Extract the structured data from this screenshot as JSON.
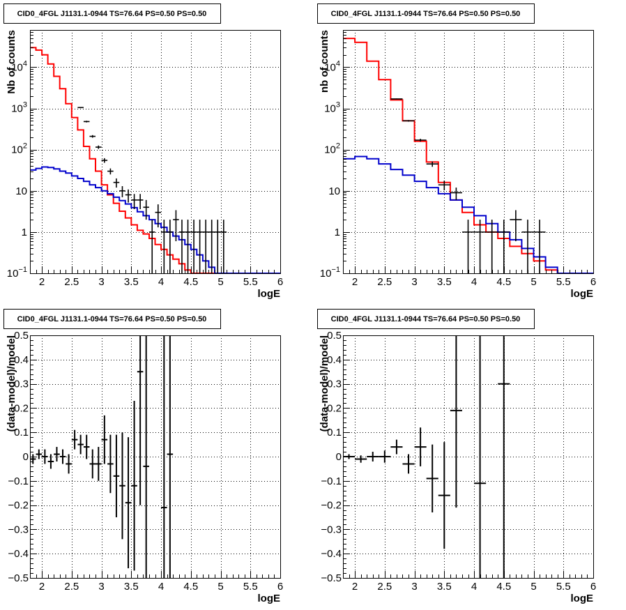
{
  "chart_data": [
    {
      "type": "line",
      "title": "CID0_4FGL J1131.1-0944 TS=76.64 PS=0.50 PS=0.50",
      "xlabel": "logE",
      "ylabel": "Nb of counts",
      "yscale": "log",
      "xlim": [
        1.8,
        6
      ],
      "ylim": [
        0.1,
        80000
      ],
      "grid": true,
      "xticks": [
        "2",
        "2.5",
        "3",
        "3.5",
        "4",
        "4.5",
        "5",
        "5.5",
        "6"
      ],
      "yticks": [
        {
          "base": "10",
          "exp": "−1",
          "value": 0.1
        },
        {
          "base": "1",
          "exp": "",
          "value": 1
        },
        {
          "base": "10",
          "exp": "",
          "value": 10
        },
        {
          "base": "10",
          "exp": "2",
          "value": 100
        },
        {
          "base": "10",
          "exp": "3",
          "value": 1000
        },
        {
          "base": "10",
          "exp": "4",
          "value": 10000
        }
      ],
      "bin_width": 0.1,
      "series": [
        {
          "color": "#ff0000",
          "style": "step",
          "x": [
            1.8,
            1.9,
            2.0,
            2.1,
            2.2,
            2.3,
            2.4,
            2.5,
            2.6,
            2.7,
            2.8,
            2.9,
            3.0,
            3.1,
            3.2,
            3.3,
            3.4,
            3.5,
            3.6,
            3.7,
            3.8,
            3.9,
            4.0,
            4.1,
            4.2,
            4.3,
            4.4,
            4.5,
            4.6,
            4.7,
            4.8,
            4.9,
            5.0,
            5.1,
            5.2,
            5.3,
            5.4,
            5.5,
            5.6,
            5.7,
            5.8,
            5.9
          ],
          "y": [
            30000,
            26000,
            20000,
            12000,
            6000,
            3000,
            1300,
            600,
            300,
            120,
            60,
            30,
            14,
            8,
            5,
            3.2,
            2.2,
            1.5,
            1.1,
            0.9,
            0.7,
            0.5,
            0.38,
            0.28,
            0.22,
            0.17,
            0.12,
            0.1,
            0.1,
            0.1,
            0.1,
            0.1,
            0.1,
            0.1,
            0.1,
            0.1,
            0.1,
            0.1,
            0.1,
            0.1,
            0.1,
            0.1
          ]
        },
        {
          "color": "#0000cc",
          "style": "step",
          "x": [
            1.8,
            1.9,
            2.0,
            2.1,
            2.2,
            2.3,
            2.4,
            2.5,
            2.6,
            2.7,
            2.8,
            2.9,
            3.0,
            3.1,
            3.2,
            3.3,
            3.4,
            3.5,
            3.6,
            3.7,
            3.8,
            3.9,
            4.0,
            4.1,
            4.2,
            4.3,
            4.4,
            4.5,
            4.6,
            4.7,
            4.8,
            4.9,
            5.0,
            5.1,
            5.2,
            5.3,
            5.4,
            5.5,
            5.6,
            5.7,
            5.8,
            5.9
          ],
          "y": [
            32,
            35,
            38,
            37,
            34,
            30,
            27,
            23,
            20,
            17,
            14,
            12,
            10,
            8.5,
            7,
            5.8,
            4.8,
            3.9,
            3.1,
            2.5,
            2.0,
            1.6,
            1.3,
            1.0,
            0.8,
            0.65,
            0.5,
            0.38,
            0.28,
            0.2,
            0.14,
            0.1,
            0.1,
            0.1,
            0.1,
            0.1,
            0.1,
            0.1,
            0.1,
            0.1,
            0.1,
            0.1
          ]
        },
        {
          "color": "#000000",
          "style": "points",
          "x": [
            2.65,
            2.75,
            2.85,
            2.95,
            3.05,
            3.15,
            3.25,
            3.35,
            3.45,
            3.55,
            3.65,
            3.75,
            3.85,
            3.95,
            4.05,
            4.15,
            4.25,
            4.35,
            4.45,
            4.55,
            4.65,
            4.75,
            4.85,
            4.95,
            5.05
          ],
          "y": [
            1050,
            480,
            210,
            115,
            55,
            30,
            16,
            10,
            8,
            6,
            6,
            4,
            1,
            3,
            1,
            1,
            2,
            1,
            1,
            1,
            1,
            1,
            1,
            1,
            1
          ],
          "yerr_lo": [
            32,
            22,
            15,
            11,
            7,
            5,
            4,
            3,
            2.8,
            2.4,
            2.4,
            2,
            0.9,
            1.7,
            0.9,
            0.9,
            1.4,
            0.9,
            0.9,
            0.9,
            0.9,
            0.9,
            0.9,
            0.9,
            0.9
          ],
          "yerr_hi": [
            32,
            22,
            15,
            11,
            7,
            5,
            4,
            3,
            2.8,
            2.4,
            2.4,
            2,
            1,
            1.7,
            1,
            1,
            1.4,
            1,
            1,
            1,
            1,
            1,
            1,
            1,
            1
          ]
        }
      ]
    },
    {
      "type": "line",
      "title": "CID0_4FGL J1131.1-0944 TS=76.64 PS=0.50 PS=0.50",
      "xlabel": "logE",
      "ylabel": "nb of counts",
      "yscale": "log",
      "xlim": [
        1.8,
        6
      ],
      "ylim": [
        0.1,
        80000
      ],
      "grid": true,
      "xticks": [
        "2",
        "2.5",
        "3",
        "3.5",
        "4",
        "4.5",
        "5",
        "5.5",
        "6"
      ],
      "yticks": [
        {
          "base": "10",
          "exp": "−1",
          "value": 0.1
        },
        {
          "base": "1",
          "exp": "",
          "value": 1
        },
        {
          "base": "10",
          "exp": "",
          "value": 10
        },
        {
          "base": "10",
          "exp": "2",
          "value": 100
        },
        {
          "base": "10",
          "exp": "3",
          "value": 1000
        },
        {
          "base": "10",
          "exp": "4",
          "value": 10000
        }
      ],
      "bin_width": 0.2,
      "series": [
        {
          "color": "#ff0000",
          "style": "step",
          "x": [
            1.8,
            2.0,
            2.2,
            2.4,
            2.6,
            2.8,
            3.0,
            3.2,
            3.4,
            3.6,
            3.8,
            4.0,
            4.2,
            4.4,
            4.6,
            4.8,
            5.0,
            5.2,
            5.4,
            5.6,
            5.8
          ],
          "y": [
            50000,
            40000,
            14000,
            5000,
            1600,
            500,
            160,
            50,
            16,
            6,
            3,
            1.5,
            1.0,
            0.7,
            0.45,
            0.3,
            0.2,
            0.12,
            0.1,
            0.1,
            0.1
          ]
        },
        {
          "color": "#0000cc",
          "style": "step",
          "x": [
            1.8,
            2.0,
            2.2,
            2.4,
            2.6,
            2.8,
            3.0,
            3.2,
            3.4,
            3.6,
            3.8,
            4.0,
            4.2,
            4.4,
            4.6,
            4.8,
            5.0,
            5.2,
            5.4,
            5.6,
            5.8
          ],
          "y": [
            60,
            68,
            60,
            45,
            33,
            24,
            17,
            12,
            8.5,
            6,
            4,
            2.5,
            1.6,
            1.0,
            0.65,
            0.4,
            0.25,
            0.14,
            0.1,
            0.1,
            0.1
          ]
        },
        {
          "color": "#000000",
          "style": "points",
          "x": [
            2.7,
            2.9,
            3.1,
            3.3,
            3.5,
            3.7,
            3.9,
            4.1,
            4.3,
            4.5,
            4.7,
            4.9,
            5.1
          ],
          "y": [
            1700,
            500,
            170,
            45,
            14,
            9,
            1,
            1,
            1,
            1,
            2,
            1,
            1
          ],
          "yerr_lo": [
            41,
            22,
            13,
            6.7,
            3.7,
            3,
            0.9,
            0.9,
            0.9,
            0.9,
            1.4,
            0.9,
            0.9
          ],
          "yerr_hi": [
            41,
            22,
            13,
            6.7,
            3.7,
            3,
            1,
            1,
            1,
            1,
            1.4,
            1,
            1
          ]
        }
      ]
    },
    {
      "type": "scatter",
      "title": "CID0_4FGL J1131.1-0944 TS=76.64 PS=0.50 PS=0.50",
      "xlabel": "logE",
      "ylabel": "(data-model)/model",
      "xlim": [
        1.8,
        6
      ],
      "ylim": [
        -0.5,
        0.5
      ],
      "grid": true,
      "xticks": [
        "2",
        "2.5",
        "3",
        "3.5",
        "4",
        "4.5",
        "5",
        "5.5",
        "6"
      ],
      "yticks": [
        "−0.5",
        "−0.4",
        "−0.3",
        "−0.2",
        "−0.1",
        "0",
        "0.1",
        "0.2",
        "0.3",
        "0.4",
        "0.5"
      ],
      "x_halfwidth": 0.05,
      "series": [
        {
          "color": "#000000",
          "x": [
            1.85,
            1.95,
            2.05,
            2.15,
            2.25,
            2.35,
            2.45,
            2.55,
            2.65,
            2.75,
            2.85,
            2.95,
            3.05,
            3.15,
            3.25,
            3.35,
            3.45,
            3.55,
            3.65,
            3.75,
            4.05,
            4.15
          ],
          "y": [
            -0.01,
            0.01,
            0.0,
            -0.02,
            0.01,
            0.0,
            -0.03,
            0.07,
            0.05,
            0.04,
            -0.03,
            -0.03,
            0.07,
            -0.03,
            -0.08,
            -0.12,
            -0.19,
            -0.12,
            0.35,
            -0.04,
            -0.21,
            0.01
          ],
          "yerr": [
            0.02,
            0.02,
            0.03,
            0.03,
            0.03,
            0.03,
            0.04,
            0.04,
            0.04,
            0.05,
            0.06,
            0.07,
            0.1,
            0.12,
            0.17,
            0.22,
            0.27,
            0.35,
            0.55,
            0.6,
            1.5,
            1.5
          ]
        }
      ]
    },
    {
      "type": "scatter",
      "title": "CID0_4FGL J1131.1-0944 TS=76.64 PS=0.50 PS=0.50",
      "xlabel": "logE",
      "ylabel": "(data-model)/model",
      "xlim": [
        1.8,
        6
      ],
      "ylim": [
        -0.5,
        0.5
      ],
      "grid": true,
      "xticks": [
        "2",
        "2.5",
        "3",
        "3.5",
        "4",
        "4.5",
        "5",
        "5.5",
        "6"
      ],
      "yticks": [
        "−0.5",
        "−0.4",
        "−0.3",
        "−0.2",
        "−0.1",
        "0",
        "0.1",
        "0.2",
        "0.3",
        "0.4",
        "0.5"
      ],
      "x_halfwidth": 0.1,
      "series": [
        {
          "color": "#000000",
          "x": [
            1.9,
            2.1,
            2.3,
            2.5,
            2.7,
            2.9,
            3.1,
            3.3,
            3.5,
            3.7,
            4.1,
            4.5
          ],
          "y": [
            0.0,
            -0.01,
            0.0,
            0.0,
            0.04,
            -0.03,
            0.04,
            -0.09,
            -0.16,
            0.19,
            -0.11,
            0.3
          ],
          "yerr": [
            0.01,
            0.015,
            0.02,
            0.025,
            0.03,
            0.04,
            0.08,
            0.14,
            0.22,
            0.4,
            1.5,
            1.5
          ]
        }
      ]
    }
  ]
}
